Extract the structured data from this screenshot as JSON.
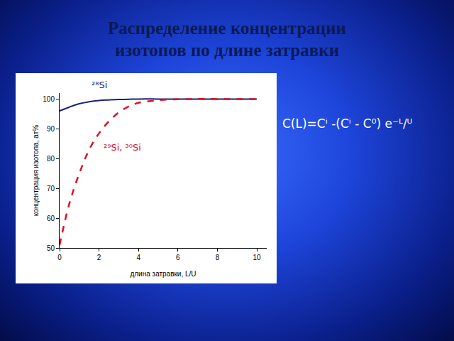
{
  "chart_data": {
    "type": "line",
    "title": [
      "Распределение концентрации",
      "изотопов по длине затравки"
    ],
    "formula": "C(L)=Cⁱ -(Cⁱ - C⁰) e⁻ᴸ/ᵁ",
    "x_label": "длина затравки, L/U",
    "y_label": "концентрация изотопа, ат%",
    "x": [
      0,
      0.5,
      1,
      1.5,
      2,
      2.5,
      3,
      3.5,
      4,
      5,
      6,
      7,
      8,
      9,
      10
    ],
    "series": [
      {
        "name": "²⁸Si",
        "color": "#1a1f7a",
        "line_style": "solid",
        "values": [
          96,
          97.3,
          98.4,
          99.1,
          99.5,
          99.7,
          99.85,
          99.9,
          100,
          100,
          100,
          100,
          100,
          100,
          100
        ]
      },
      {
        "name": "²⁹Si, ³⁰Si",
        "color": "#e01020",
        "line_style": "dashed",
        "values": [
          51,
          65,
          75,
          83,
          88.5,
          92.5,
          95.5,
          97.5,
          98.7,
          99.6,
          99.9,
          100,
          100,
          100,
          100
        ]
      }
    ],
    "xlim": [
      0,
      10.5
    ],
    "xticks": [
      0,
      2,
      4,
      6,
      8,
      10
    ],
    "ylim": [
      50,
      102
    ],
    "yticks": [
      50,
      60,
      70,
      80,
      90,
      100
    ],
    "grid": false
  }
}
